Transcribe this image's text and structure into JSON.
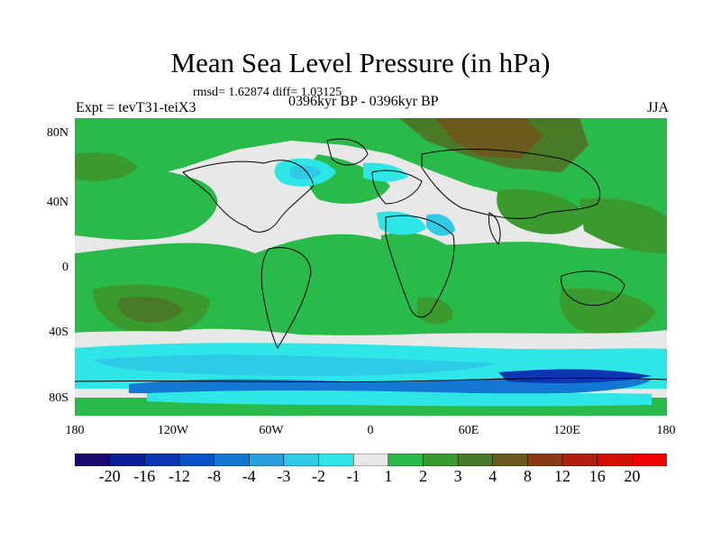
{
  "title": "Mean Sea Level Pressure (in hPa)",
  "stats": "rmsd= 1.62874 diff= 1.03125",
  "experiment": "Expt = tevT31-teiX3",
  "period": "0396kyr BP - 0396kyr BP",
  "season": "JJA",
  "lat_labels": [
    "80N",
    "40N",
    "0",
    "40S",
    "80S"
  ],
  "lon_labels": [
    "180",
    "120W",
    "60W",
    "0",
    "60E",
    "120E",
    "180"
  ],
  "colorbar": {
    "labels": [
      "-20",
      "-16",
      "-12",
      "-8",
      "-4",
      "-3",
      "-2",
      "-1",
      "1",
      "2",
      "3",
      "4",
      "8",
      "12",
      "16",
      "20"
    ],
    "colors": [
      "#1a0a6e",
      "#0b1e96",
      "#0a36b4",
      "#0a52c8",
      "#1478d2",
      "#2a9ede",
      "#2ecae6",
      "#2ee6e6",
      "#e8e8e8",
      "#2aba4a",
      "#3a9a2e",
      "#4a7a28",
      "#6a5a1e",
      "#8a3a14",
      "#b0200c",
      "#d41004",
      "#f00000"
    ]
  },
  "map_colors": {
    "neutral": "#e8e8e8",
    "green": "#2aba4a",
    "olive": "#3a9a2e",
    "dark_olive": "#4a7a28",
    "brown": "#6a5a1e",
    "cyan": "#2ee6e6",
    "light_blue": "#2ecae6",
    "blue": "#1478d2",
    "dark_blue": "#0a36b4",
    "coast": "#000000"
  }
}
